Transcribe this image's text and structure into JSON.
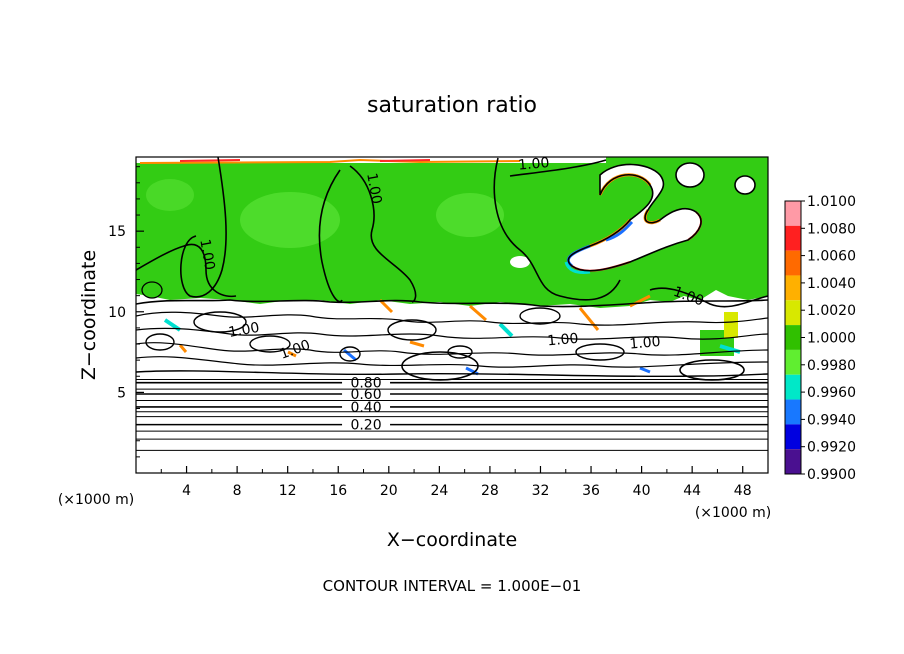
{
  "chart_data": {
    "type": "heatmap",
    "title": "saturation ratio",
    "xlabel": "X−coordinate",
    "ylabel": "Z−coordinate",
    "x_unit_label": "(×1000 m)",
    "z_unit_label": "(×1000 m)",
    "xlim": [
      0,
      50
    ],
    "ylim": [
      0,
      19.6
    ],
    "x_ticks": [
      4,
      8,
      12,
      16,
      20,
      24,
      28,
      32,
      36,
      40,
      44,
      48
    ],
    "y_ticks": [
      5,
      10,
      15
    ],
    "footer": "CONTOUR INTERVAL = 1.000E−01",
    "colorbar": {
      "labels": [
        "1.0100",
        "1.0080",
        "1.0060",
        "1.0040",
        "1.0020",
        "1.0000",
        "0.9980",
        "0.9960",
        "0.9940",
        "0.9920",
        "0.9900"
      ],
      "colors": [
        "#ff9aa6",
        "#ff2020",
        "#ff6a00",
        "#ffb000",
        "#d8e800",
        "#30c000",
        "#60ee30",
        "#00e8c8",
        "#1878ff",
        "#0000e0",
        "#4a1090"
      ]
    },
    "contours": [
      {
        "label": "0.20",
        "z": 3.0
      },
      {
        "label": "0.40",
        "z": 4.1
      },
      {
        "label": "0.60",
        "z": 4.9
      },
      {
        "label": "0.80",
        "z": 5.6
      }
    ],
    "contour_1_labels": [
      {
        "label": "1.00",
        "x": 5.3,
        "z": 13.5
      },
      {
        "label": "1.00",
        "x": 18.5,
        "z": 17.6
      },
      {
        "label": "1.00",
        "x": 31.5,
        "z": 18.9
      },
      {
        "label": "1.00",
        "x": 8.6,
        "z": 8.6
      },
      {
        "label": "1.00",
        "x": 12.7,
        "z": 7.4
      },
      {
        "label": "1.00",
        "x": 33.8,
        "z": 8.0
      },
      {
        "label": "1.00",
        "x": 40.3,
        "z": 7.8
      },
      {
        "label": "1.00",
        "x": 43.6,
        "z": 10.7
      }
    ]
  }
}
